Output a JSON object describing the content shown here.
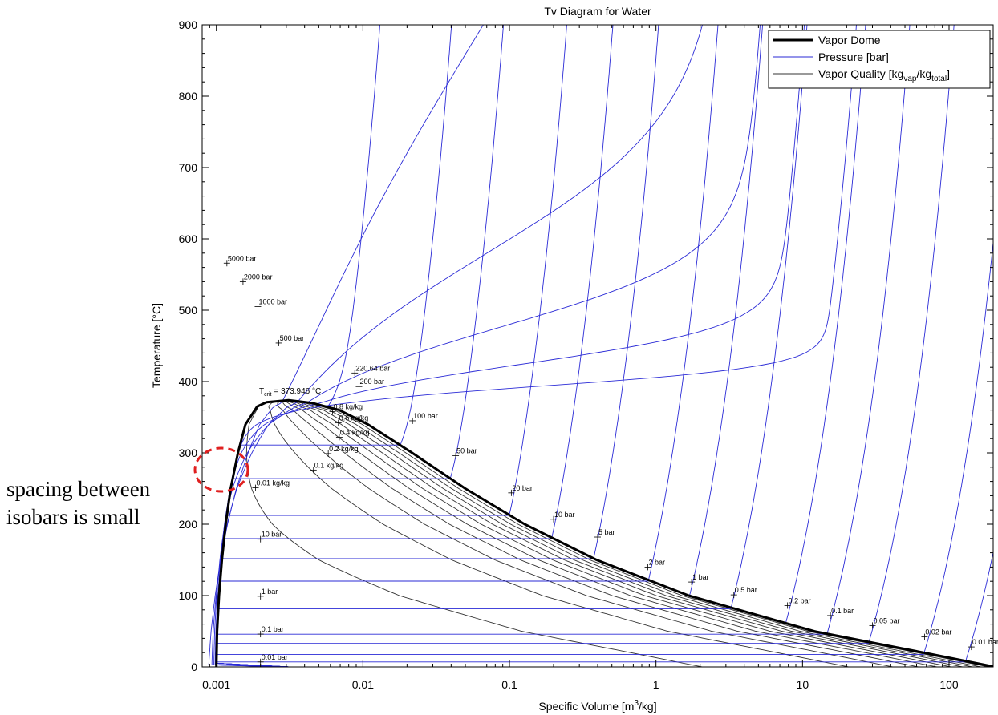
{
  "chart_data": {
    "type": "line",
    "title": "Tv Diagram for Water",
    "xlabel": {
      "main": "Specific Volume [m",
      "sup": "3",
      "tail": "/kg]"
    },
    "ylabel": "Temperature [°C]",
    "xscale": "log",
    "xlim": [
      0.0008,
      200
    ],
    "ylim": [
      0,
      900
    ],
    "x_ticks": [
      {
        "value": 0.001,
        "label": "0.001"
      },
      {
        "value": 0.01,
        "label": "0.01"
      },
      {
        "value": 0.1,
        "label": "0.1"
      },
      {
        "value": 1,
        "label": "1"
      },
      {
        "value": 10,
        "label": "10"
      },
      {
        "value": 100,
        "label": "100"
      }
    ],
    "y_ticks": [
      0,
      100,
      200,
      300,
      400,
      500,
      600,
      700,
      800,
      900
    ],
    "grid": false,
    "legend": {
      "placement": "top-right",
      "entries": [
        {
          "label": "Vapor Dome",
          "color": "#000000",
          "width": "thick"
        },
        {
          "label": "Pressure [bar]",
          "color": "#2a2ad6",
          "width": "thin"
        },
        {
          "label_parts": {
            "a": "Vapor Quality [kg",
            "b": "vap",
            "c": "/kg",
            "d": "total",
            "e": "]"
          },
          "color": "#333333",
          "width": "thin"
        }
      ]
    },
    "critical_point": {
      "T": 373.946,
      "v": 0.00311,
      "label_main": "T",
      "label_sub": "crit",
      "label_rest": "= 373.946 °C"
    },
    "vapor_dome": {
      "liquid_side": [
        [
          0.001,
          0.01
        ],
        [
          0.001012,
          50
        ],
        [
          0.001043,
          100
        ],
        [
          0.001091,
          150
        ],
        [
          0.001157,
          200
        ],
        [
          0.001252,
          250
        ],
        [
          0.001404,
          300
        ],
        [
          0.00158,
          340
        ],
        [
          0.0019,
          365
        ],
        [
          0.0022,
          371
        ],
        [
          0.00311,
          373.946
        ]
      ],
      "vapor_side": [
        [
          0.00311,
          373.946
        ],
        [
          0.0045,
          370
        ],
        [
          0.0069,
          360
        ],
        [
          0.0108,
          340
        ],
        [
          0.0217,
          300
        ],
        [
          0.05,
          250
        ],
        [
          0.127,
          200
        ],
        [
          0.393,
          150
        ],
        [
          1.67,
          100
        ],
        [
          12.0,
          50
        ],
        [
          67.0,
          20
        ],
        [
          206,
          0.01
        ]
      ]
    },
    "isobars": [
      {
        "label": "0.01 bar",
        "p": 0.01,
        "Tsat": 7,
        "v_vap": 129.2
      },
      {
        "label": "0.02 bar",
        "p": 0.02,
        "Tsat": 17.5,
        "v_vap": 67.0
      },
      {
        "label": "0.05 bar",
        "p": 0.05,
        "Tsat": 32.9,
        "v_vap": 28.2
      },
      {
        "label": "0.1 bar",
        "p": 0.1,
        "Tsat": 45.8,
        "v_vap": 14.67
      },
      {
        "label": "0.2 bar",
        "p": 0.2,
        "Tsat": 60.1,
        "v_vap": 7.65
      },
      {
        "label": "0.5 bar",
        "p": 0.5,
        "Tsat": 81.3,
        "v_vap": 3.24
      },
      {
        "label": "1 bar",
        "p": 1,
        "Tsat": 99.6,
        "v_vap": 1.694
      },
      {
        "label": "2 bar",
        "p": 2,
        "Tsat": 120.2,
        "v_vap": 0.886
      },
      {
        "label": "5 bar",
        "p": 5,
        "Tsat": 151.8,
        "v_vap": 0.375
      },
      {
        "label": "10 bar",
        "p": 10,
        "Tsat": 179.9,
        "v_vap": 0.194
      },
      {
        "label": "20 bar",
        "p": 20,
        "Tsat": 212.4,
        "v_vap": 0.0996
      },
      {
        "label": "50 bar",
        "p": 50,
        "Tsat": 263.9,
        "v_vap": 0.0394
      },
      {
        "label": "100 bar",
        "p": 100,
        "Tsat": 311.0,
        "v_vap": 0.018
      },
      {
        "label": "200 bar",
        "p": 200,
        "Tsat": 365.7,
        "v_vap": 0.0058
      },
      {
        "label": "220.64 bar",
        "p": 220.64,
        "Tsat": 373.9,
        "v_vap": 0.0031
      },
      {
        "label": "500 bar",
        "p": 500,
        "Tsat": null,
        "v_vap": null
      },
      {
        "label": "1000 bar",
        "p": 1000,
        "Tsat": null,
        "v_vap": null
      },
      {
        "label": "2000 bar",
        "p": 2000,
        "Tsat": null,
        "v_vap": null
      },
      {
        "label": "5000 bar",
        "p": 5000,
        "Tsat": null,
        "v_vap": null
      }
    ],
    "isobar_labels": [
      {
        "text": "5000 bar",
        "v": 0.00118,
        "T": 566
      },
      {
        "text": "2000 bar",
        "v": 0.00152,
        "T": 540
      },
      {
        "text": "1000 bar",
        "v": 0.00192,
        "T": 505
      },
      {
        "text": "500 bar",
        "v": 0.00267,
        "T": 454
      },
      {
        "text": "220.64 bar",
        "v": 0.0088,
        "T": 412
      },
      {
        "text": "200 bar",
        "v": 0.0094,
        "T": 393
      },
      {
        "text": "100 bar",
        "v": 0.0218,
        "T": 345
      },
      {
        "text": "50 bar",
        "v": 0.043,
        "T": 296
      },
      {
        "text": "20 bar",
        "v": 0.103,
        "T": 244
      },
      {
        "text": "10 bar",
        "v": 0.2,
        "T": 207
      },
      {
        "text": "5 bar",
        "v": 0.4,
        "T": 182
      },
      {
        "text": "2 bar",
        "v": 0.88,
        "T": 140
      },
      {
        "text": "1 bar",
        "v": 1.75,
        "T": 119
      },
      {
        "text": "0.5 bar",
        "v": 3.4,
        "T": 101
      },
      {
        "text": "0.2 bar",
        "v": 7.9,
        "T": 86
      },
      {
        "text": "0.1 bar",
        "v": 15.5,
        "T": 72
      },
      {
        "text": "0.05 bar",
        "v": 30,
        "T": 58
      },
      {
        "text": "0.02 bar",
        "v": 68,
        "T": 42
      },
      {
        "text": "0.01 bar",
        "v": 142,
        "T": 28
      },
      {
        "text": "10 bar",
        "v": 0.002,
        "T": 179
      },
      {
        "text": "1 bar",
        "v": 0.002,
        "T": 99
      },
      {
        "text": "0.1 bar",
        "v": 0.002,
        "T": 46
      },
      {
        "text": "0.01 bar",
        "v": 0.002,
        "T": 7
      }
    ],
    "quality_lines": [
      {
        "x": 0.01,
        "label": "0.01 kg/kg",
        "label_at": {
          "v": 0.00185,
          "T": 251
        }
      },
      {
        "x": 0.1,
        "label": "0.1 kg/kg",
        "label_at": {
          "v": 0.0046,
          "T": 276
        }
      },
      {
        "x": 0.2,
        "label": "0.2 kg/kg",
        "label_at": {
          "v": 0.0058,
          "T": 299
        }
      },
      {
        "x": 0.3,
        "label": "",
        "label_at": null
      },
      {
        "x": 0.4,
        "label": "0.4 kg/kg",
        "label_at": {
          "v": 0.0069,
          "T": 322
        }
      },
      {
        "x": 0.5,
        "label": "",
        "label_at": null
      },
      {
        "x": 0.6,
        "label": "0.6 kg/kg",
        "label_at": {
          "v": 0.0068,
          "T": 342
        }
      },
      {
        "x": 0.7,
        "label": "",
        "label_at": null
      },
      {
        "x": 0.8,
        "label": "0.8 kg/kg",
        "label_at": {
          "v": 0.0062,
          "T": 358
        }
      },
      {
        "x": 0.9,
        "label": "",
        "label_at": null
      }
    ],
    "colors": {
      "dome": "#000000",
      "isobar": "#2a2ad6",
      "quality": "#333333",
      "highlight": "#e02020"
    }
  },
  "annotation": {
    "line1": "spacing between",
    "line2": "isobars is small"
  }
}
